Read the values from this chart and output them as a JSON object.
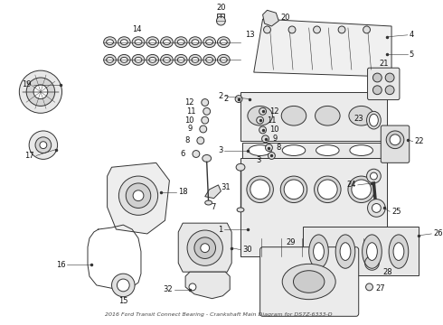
{
  "title": "2016 Ford Transit Connect Bearing - Crankshaft Main Diagram for DS7Z-6333-D",
  "background_color": "#ffffff",
  "line_color": "#333333",
  "label_color": "#111111",
  "label_fontsize": 6.0,
  "fig_w": 4.9,
  "fig_h": 3.6,
  "dpi": 100
}
